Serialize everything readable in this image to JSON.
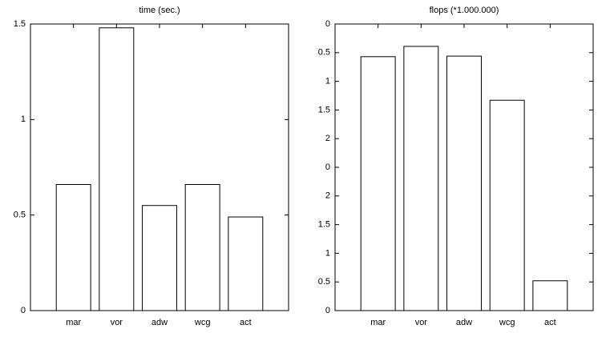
{
  "chart_data": [
    {
      "type": "bar",
      "title": "time (sec.)",
      "categories": [
        "mar",
        "vor",
        "adw",
        "wcg",
        "act"
      ],
      "values": [
        0.66,
        1.48,
        0.55,
        0.66,
        0.49
      ],
      "color": "#ffffff",
      "ylim": [
        0,
        1.5
      ],
      "yticks": [
        0,
        0.5,
        1,
        1.5
      ]
    },
    {
      "type": "bar",
      "title": "flops (*1.000.000)",
      "categories": [
        "mar",
        "vor",
        "adw",
        "wcg",
        "act"
      ],
      "values": [
        4.43,
        4.61,
        4.44,
        3.67,
        0.52
      ],
      "color": "#ffffff",
      "ylim": [
        0,
        5
      ],
      "yticks": [
        0,
        0.5,
        1,
        1.5,
        2,
        {
          "value": 2.5,
          "label": "0"
        },
        {
          "value": 3,
          "label": "2"
        },
        {
          "value": 3.5,
          "label": "1.5"
        },
        {
          "value": 4,
          "label": "1"
        },
        {
          "value": 4.5,
          "label": "0.5"
        },
        {
          "value": 5,
          "label": "0"
        }
      ]
    }
  ]
}
